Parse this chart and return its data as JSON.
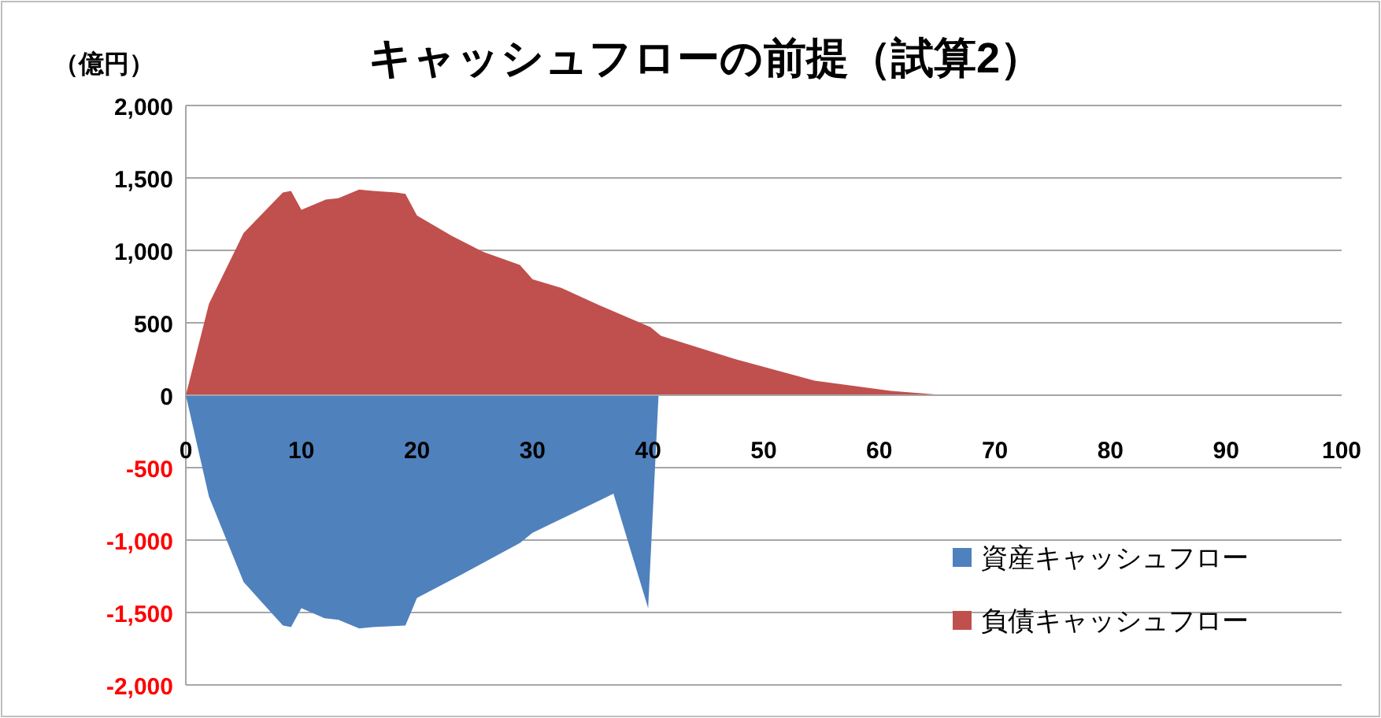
{
  "chart_data": {
    "type": "area",
    "title": "キャッシュフローの前提（試算2）",
    "ylabel": "（億円）",
    "xlim": [
      0,
      100
    ],
    "xticks": [
      0,
      10,
      20,
      30,
      40,
      50,
      60,
      70,
      80,
      90,
      100
    ],
    "ylim": [
      -2000,
      2000
    ],
    "yticks": [
      {
        "value": -2000,
        "label": "-2,000"
      },
      {
        "value": -1500,
        "label": "-1,500"
      },
      {
        "value": -1000,
        "label": "-1,000"
      },
      {
        "value": -500,
        "label": "-500"
      },
      0,
      500,
      {
        "value": 1000,
        "label": "1,000"
      },
      {
        "value": 1500,
        "label": "1,500"
      },
      {
        "value": 2000,
        "label": "2,000"
      }
    ],
    "grid": "y",
    "legend": "bottom right",
    "series": [
      {
        "name": "資産キャッシュフロー",
        "color": "#4f81bd",
        "x": [
          0,
          2,
          5,
          8.4,
          9.1,
          10,
          12,
          13.2,
          15,
          16.2,
          19,
          20,
          23.8,
          28.9,
          30,
          37,
          40,
          40.9,
          50,
          60,
          70,
          80,
          90,
          100
        ],
        "values": [
          0,
          -700,
          -1290,
          -1590,
          -1600,
          -1470,
          -1540,
          -1550,
          -1610,
          -1600,
          -1590,
          -1400,
          -1240,
          -1020,
          -950,
          -680,
          -1470,
          0,
          0,
          0,
          0,
          0,
          0,
          0
        ]
      },
      {
        "name": "負債キャッシュフロー",
        "color": "#c0504d",
        "x": [
          0,
          2,
          5,
          8.4,
          9.1,
          10,
          12.1,
          13.2,
          15,
          16.2,
          18.2,
          19,
          20,
          23,
          25.7,
          28.9,
          30,
          32.5,
          36.1,
          40.2,
          41.1,
          47.5,
          54.4,
          61,
          65.7,
          70,
          80,
          90,
          100
        ],
        "values": [
          0,
          630,
          1120,
          1400,
          1410,
          1280,
          1350,
          1360,
          1420,
          1410,
          1400,
          1390,
          1240,
          1100,
          990,
          900,
          800,
          740,
          610,
          470,
          410,
          250,
          100,
          30,
          0,
          0,
          0,
          0,
          0
        ]
      }
    ]
  }
}
